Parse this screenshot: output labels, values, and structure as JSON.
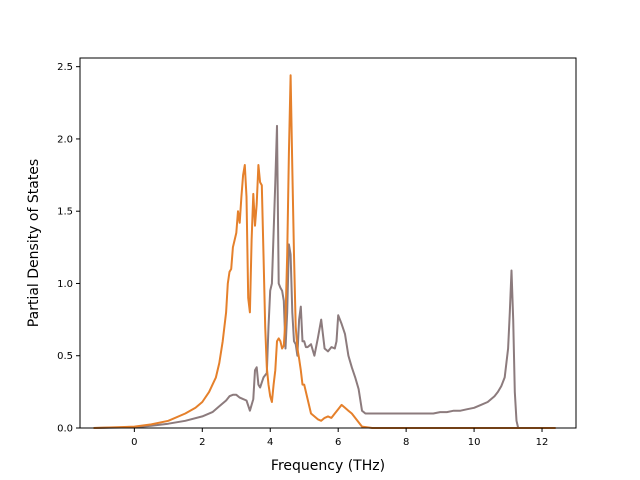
{
  "chart_data": {
    "type": "line",
    "title": "",
    "xlabel": "Frequency (THz)",
    "ylabel": "Partial Density of States",
    "xlim": [
      -1.6,
      13.0
    ],
    "ylim": [
      0,
      2.56
    ],
    "xticks": [
      0,
      2,
      4,
      6,
      8,
      10,
      12
    ],
    "yticks": [
      0.0,
      0.5,
      1.0,
      1.5,
      2.0,
      2.5
    ],
    "xtick_labels": [
      "0",
      "2",
      "4",
      "6",
      "8",
      "10",
      "12"
    ],
    "ytick_labels": [
      "0.0",
      "0.5",
      "1.0",
      "1.5",
      "2.0",
      "2.5"
    ],
    "grid": false,
    "legend": "none",
    "series": [
      {
        "color": "#8c7b7d",
        "x": [
          -1.2,
          0.0,
          0.5,
          1.0,
          1.5,
          2.0,
          2.3,
          2.5,
          2.7,
          2.8,
          2.9,
          3.0,
          3.1,
          3.2,
          3.3,
          3.4,
          3.5,
          3.55,
          3.6,
          3.65,
          3.7,
          3.8,
          3.9,
          3.95,
          4.0,
          4.05,
          4.1,
          4.15,
          4.2,
          4.25,
          4.3,
          4.35,
          4.4,
          4.45,
          4.5,
          4.55,
          4.6,
          4.65,
          4.7,
          4.75,
          4.8,
          4.85,
          4.9,
          4.95,
          5.0,
          5.05,
          5.1,
          5.2,
          5.3,
          5.4,
          5.5,
          5.6,
          5.7,
          5.8,
          5.9,
          5.95,
          6.0,
          6.1,
          6.2,
          6.3,
          6.4,
          6.5,
          6.6,
          6.7,
          6.8,
          6.9,
          7.0,
          7.2,
          7.4,
          7.6,
          7.8,
          8.0,
          8.2,
          8.4,
          8.6,
          8.8,
          9.0,
          9.2,
          9.4,
          9.6,
          9.8,
          10.0,
          10.2,
          10.4,
          10.5,
          10.6,
          10.7,
          10.8,
          10.9,
          11.0,
          11.05,
          11.1,
          11.15,
          11.2,
          11.25,
          11.3,
          11.4,
          12.4
        ],
        "y": [
          0.0,
          0.005,
          0.015,
          0.03,
          0.05,
          0.08,
          0.11,
          0.15,
          0.19,
          0.22,
          0.23,
          0.23,
          0.21,
          0.2,
          0.19,
          0.12,
          0.2,
          0.4,
          0.42,
          0.3,
          0.28,
          0.35,
          0.38,
          0.7,
          0.95,
          1.0,
          1.35,
          1.7,
          2.09,
          1.0,
          0.97,
          0.95,
          0.88,
          0.55,
          0.8,
          1.27,
          1.2,
          0.8,
          0.6,
          0.58,
          0.5,
          0.75,
          0.84,
          0.6,
          0.6,
          0.56,
          0.56,
          0.58,
          0.5,
          0.62,
          0.75,
          0.55,
          0.53,
          0.56,
          0.55,
          0.6,
          0.78,
          0.72,
          0.65,
          0.5,
          0.42,
          0.35,
          0.27,
          0.12,
          0.1,
          0.1,
          0.1,
          0.1,
          0.1,
          0.1,
          0.1,
          0.1,
          0.1,
          0.1,
          0.1,
          0.1,
          0.11,
          0.11,
          0.12,
          0.12,
          0.13,
          0.14,
          0.16,
          0.18,
          0.2,
          0.22,
          0.25,
          0.29,
          0.35,
          0.55,
          0.8,
          1.09,
          0.75,
          0.25,
          0.05,
          0.0,
          0.0,
          0.0
        ]
      },
      {
        "color": "#e5802b",
        "x": [
          -1.2,
          0.0,
          0.5,
          1.0,
          1.5,
          1.8,
          2.0,
          2.2,
          2.4,
          2.5,
          2.6,
          2.7,
          2.75,
          2.8,
          2.85,
          2.9,
          2.95,
          3.0,
          3.05,
          3.1,
          3.15,
          3.2,
          3.25,
          3.3,
          3.35,
          3.4,
          3.45,
          3.5,
          3.55,
          3.6,
          3.65,
          3.7,
          3.75,
          3.8,
          3.85,
          3.9,
          3.95,
          4.0,
          4.05,
          4.1,
          4.15,
          4.2,
          4.25,
          4.3,
          4.35,
          4.4,
          4.45,
          4.5,
          4.55,
          4.6,
          4.65,
          4.7,
          4.75,
          4.8,
          4.85,
          4.9,
          4.95,
          5.0,
          5.1,
          5.2,
          5.3,
          5.4,
          5.5,
          5.6,
          5.7,
          5.8,
          5.9,
          6.0,
          6.1,
          6.2,
          6.3,
          6.4,
          6.5,
          6.6,
          6.7,
          7.0,
          8.0,
          9.0,
          10.0,
          11.0,
          12.4
        ],
        "y": [
          0.0,
          0.01,
          0.025,
          0.05,
          0.1,
          0.14,
          0.18,
          0.25,
          0.35,
          0.45,
          0.6,
          0.8,
          1.0,
          1.08,
          1.1,
          1.25,
          1.3,
          1.35,
          1.5,
          1.42,
          1.6,
          1.75,
          1.82,
          1.6,
          0.9,
          0.8,
          1.3,
          1.62,
          1.4,
          1.55,
          1.82,
          1.7,
          1.68,
          1.2,
          0.7,
          0.42,
          0.3,
          0.22,
          0.18,
          0.3,
          0.4,
          0.6,
          0.62,
          0.6,
          0.55,
          0.57,
          0.75,
          1.2,
          1.9,
          2.44,
          1.8,
          1.2,
          0.7,
          0.55,
          0.48,
          0.4,
          0.3,
          0.3,
          0.2,
          0.1,
          0.08,
          0.06,
          0.05,
          0.07,
          0.08,
          0.07,
          0.1,
          0.13,
          0.16,
          0.14,
          0.12,
          0.1,
          0.07,
          0.04,
          0.01,
          0.0,
          0.0,
          0.0,
          0.0,
          0.0,
          0.0
        ]
      }
    ]
  }
}
